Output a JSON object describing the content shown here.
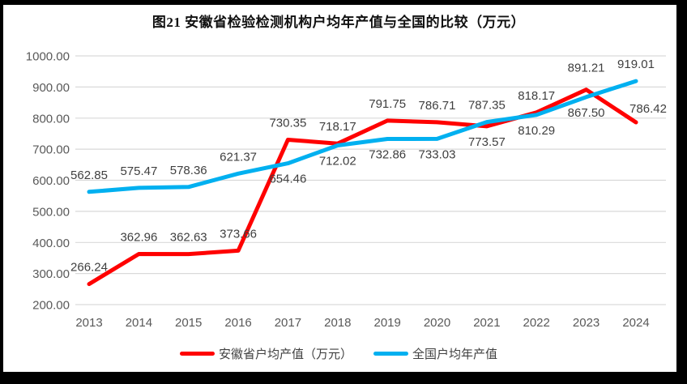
{
  "page": {
    "title": "图21 安徽省检验检测机构户均年产值与全国的比较（万元）"
  },
  "chart_data": {
    "type": "line",
    "title": "图21 安徽省检验检测机构户均年产值与全国的比较（万元）",
    "categories": [
      "2013",
      "2014",
      "2015",
      "2016",
      "2017",
      "2018",
      "2019",
      "2020",
      "2021",
      "2022",
      "2023",
      "2024"
    ],
    "series": [
      {
        "name": "安徽省户均产值（万元）",
        "color": "#FF0000",
        "values": [
          266.24,
          362.96,
          362.63,
          373.66,
          730.35,
          718.17,
          791.75,
          786.71,
          773.57,
          818.17,
          891.21,
          786.42
        ],
        "label_sides": [
          "above",
          "above",
          "above",
          "above",
          "above",
          "above",
          "above",
          "above",
          "below",
          "above",
          "above-far",
          "right-above"
        ]
      },
      {
        "name": "全国户均年产值",
        "color": "#00B0F0",
        "values": [
          562.85,
          575.47,
          578.36,
          621.37,
          654.46,
          712.02,
          732.86,
          733.03,
          787.35,
          810.29,
          867.5,
          919.01
        ],
        "label_sides": [
          "above",
          "above",
          "above",
          "above",
          "below",
          "below",
          "below",
          "below",
          "above",
          "below",
          "below",
          "above"
        ]
      }
    ],
    "xlabel": "",
    "ylabel": "",
    "ylim": [
      200,
      1000
    ],
    "ytick_step": 100,
    "ytick_format_decimals": 2,
    "value_label_decimals": 2,
    "grid": true,
    "legend_position": "bottom"
  }
}
